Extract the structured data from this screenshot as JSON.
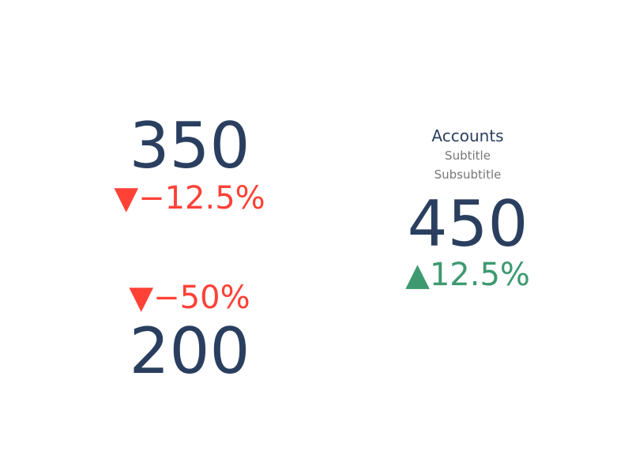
{
  "chart_data": {
    "type": "indicator",
    "indicators": [
      {
        "value": "350",
        "delta": "▼−12.5%",
        "delta_direction": "decreasing"
      },
      {
        "value": "200",
        "delta": "▼−50%",
        "delta_direction": "decreasing"
      },
      {
        "title": "Accounts",
        "subtitle": "Subtitle",
        "subsubtitle": "Subsubtitle",
        "value": "450",
        "delta": "▲12.5%",
        "delta_direction": "increasing"
      }
    ],
    "colors": {
      "value": "#2a3f5f",
      "decreasing": "#ff4136",
      "increasing": "#3d9970",
      "subtitle": "#777777"
    }
  }
}
